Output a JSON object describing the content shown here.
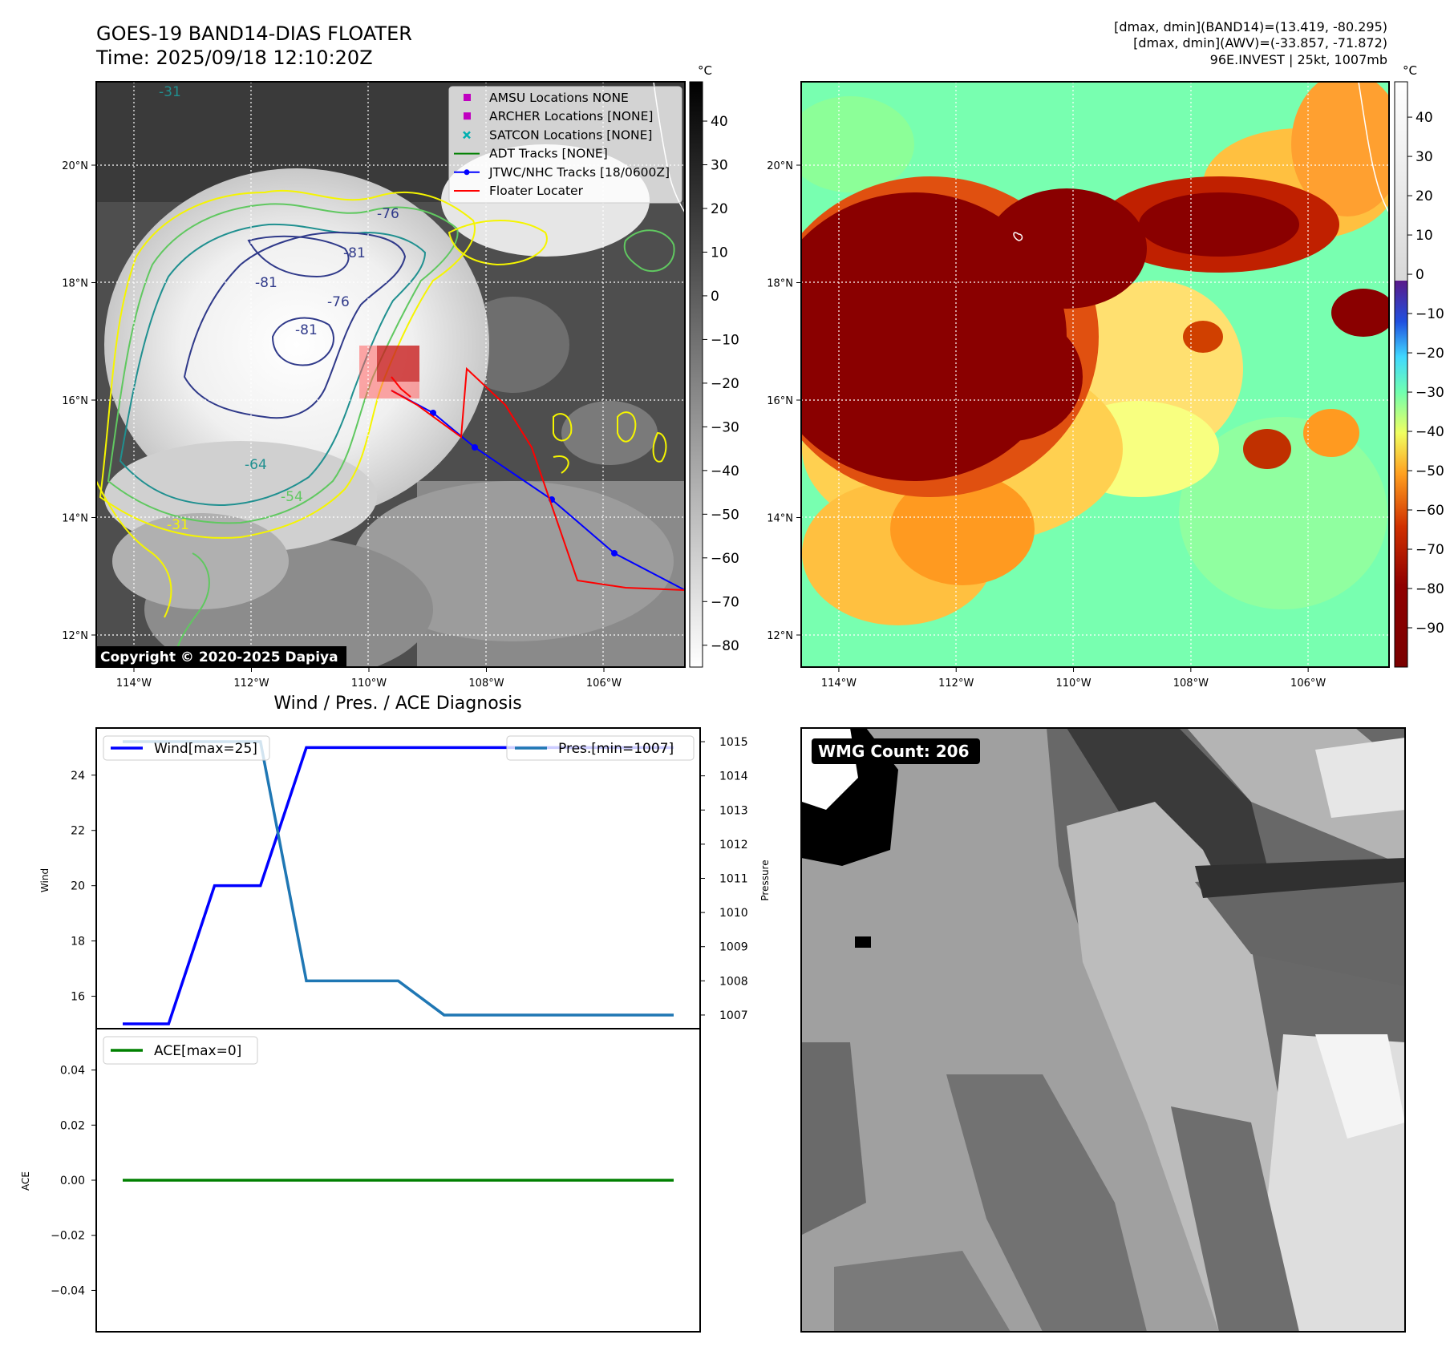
{
  "header": {
    "title": "GOES-19 BAND14-DIAS FLOATER",
    "time": "Time: 2025/09/18 12:10:20Z",
    "stat1": "[dmax, dmin](BAND14)=(13.419, -80.295)",
    "stat2": "[dmax, dmin](AWV)=(-33.857, -71.872)",
    "stat3": "96E.INVEST | 25kt, 1007mb"
  },
  "map": {
    "lon_ticks": [
      "114°W",
      "112°W",
      "110°W",
      "108°W",
      "106°W"
    ],
    "lat_ticks": [
      "20°N",
      "18°N",
      "16°N",
      "14°N",
      "12°N"
    ],
    "copyright": "Copyright © 2020-2025 Dapiya",
    "contour_labels": [
      "-31",
      "-76",
      "-81",
      "-81",
      "-76",
      "-81",
      "-64",
      "-54",
      "-31"
    ],
    "legend": [
      {
        "label": "AMSU Locations NONE",
        "color": "#c000c0",
        "marker": "square"
      },
      {
        "label": "ARCHER Locations [NONE]",
        "color": "#c000c0",
        "marker": "square"
      },
      {
        "label": "SATCON Locations [NONE]",
        "color": "#00b0b0",
        "marker": "x"
      },
      {
        "label": "ADT Tracks [NONE]",
        "color": "#008000",
        "marker": "line"
      },
      {
        "label": "JTWC/NHC Tracks [18/0600Z]",
        "color": "#0000ff",
        "marker": "line-dot"
      },
      {
        "label": "Floater Locater",
        "color": "#ff0000",
        "marker": "line"
      }
    ]
  },
  "colorbar_left": {
    "unit": "°C",
    "ticks": [
      "40",
      "30",
      "20",
      "10",
      "0",
      "−10",
      "−20",
      "−30",
      "−40",
      "−50",
      "−60",
      "−70",
      "−80"
    ]
  },
  "colorbar_right": {
    "unit": "°C",
    "ticks": [
      "40",
      "30",
      "20",
      "10",
      "0",
      "−10",
      "−20",
      "−30",
      "−40",
      "−50",
      "−60",
      "−70",
      "−80",
      "−90"
    ]
  },
  "wmg": {
    "label": "WMG Count: 206"
  },
  "chart_data": [
    {
      "type": "line",
      "title": "Wind / Pres. / ACE Diagnosis",
      "ylabel": "Wind",
      "y2label": "Pressure",
      "x": [
        0,
        1,
        2,
        3,
        4,
        5,
        6,
        7,
        8,
        9,
        10,
        11,
        12
      ],
      "ylim": [
        15,
        25.3
      ],
      "y2lim": [
        1006.6,
        1015.4
      ],
      "yticks": [
        "16",
        "18",
        "20",
        "22",
        "24"
      ],
      "y2ticks": [
        "1007",
        "1008",
        "1009",
        "1010",
        "1011",
        "1012",
        "1013",
        "1014",
        "1015"
      ],
      "series": [
        {
          "name": "Wind[max=25]",
          "axis": "left",
          "color": "#0000ff",
          "values": [
            15,
            15,
            20,
            20,
            25,
            25,
            25,
            25,
            25,
            25,
            25,
            25,
            25
          ]
        },
        {
          "name": "Pres.[min=1007]",
          "axis": "right",
          "color": "#1f77b4",
          "values": [
            1015,
            1015,
            1015,
            1015,
            1008,
            1008,
            1008,
            1007,
            1007,
            1007,
            1007,
            1007,
            1007
          ]
        }
      ],
      "legend": [
        "top-left",
        "top-right"
      ]
    },
    {
      "type": "line",
      "ylabel": "ACE",
      "x": [
        0,
        1,
        2,
        3,
        4,
        5,
        6,
        7,
        8,
        9,
        10,
        11,
        12
      ],
      "ylim": [
        -0.055,
        0.055
      ],
      "yticks": [
        "0.04",
        "0.02",
        "0.00",
        "−0.02",
        "−0.04"
      ],
      "series": [
        {
          "name": "ACE[max=0]",
          "color": "#008000",
          "values": [
            0,
            0,
            0,
            0,
            0,
            0,
            0,
            0,
            0,
            0,
            0,
            0,
            0
          ]
        }
      ],
      "legend": "top-left"
    }
  ]
}
